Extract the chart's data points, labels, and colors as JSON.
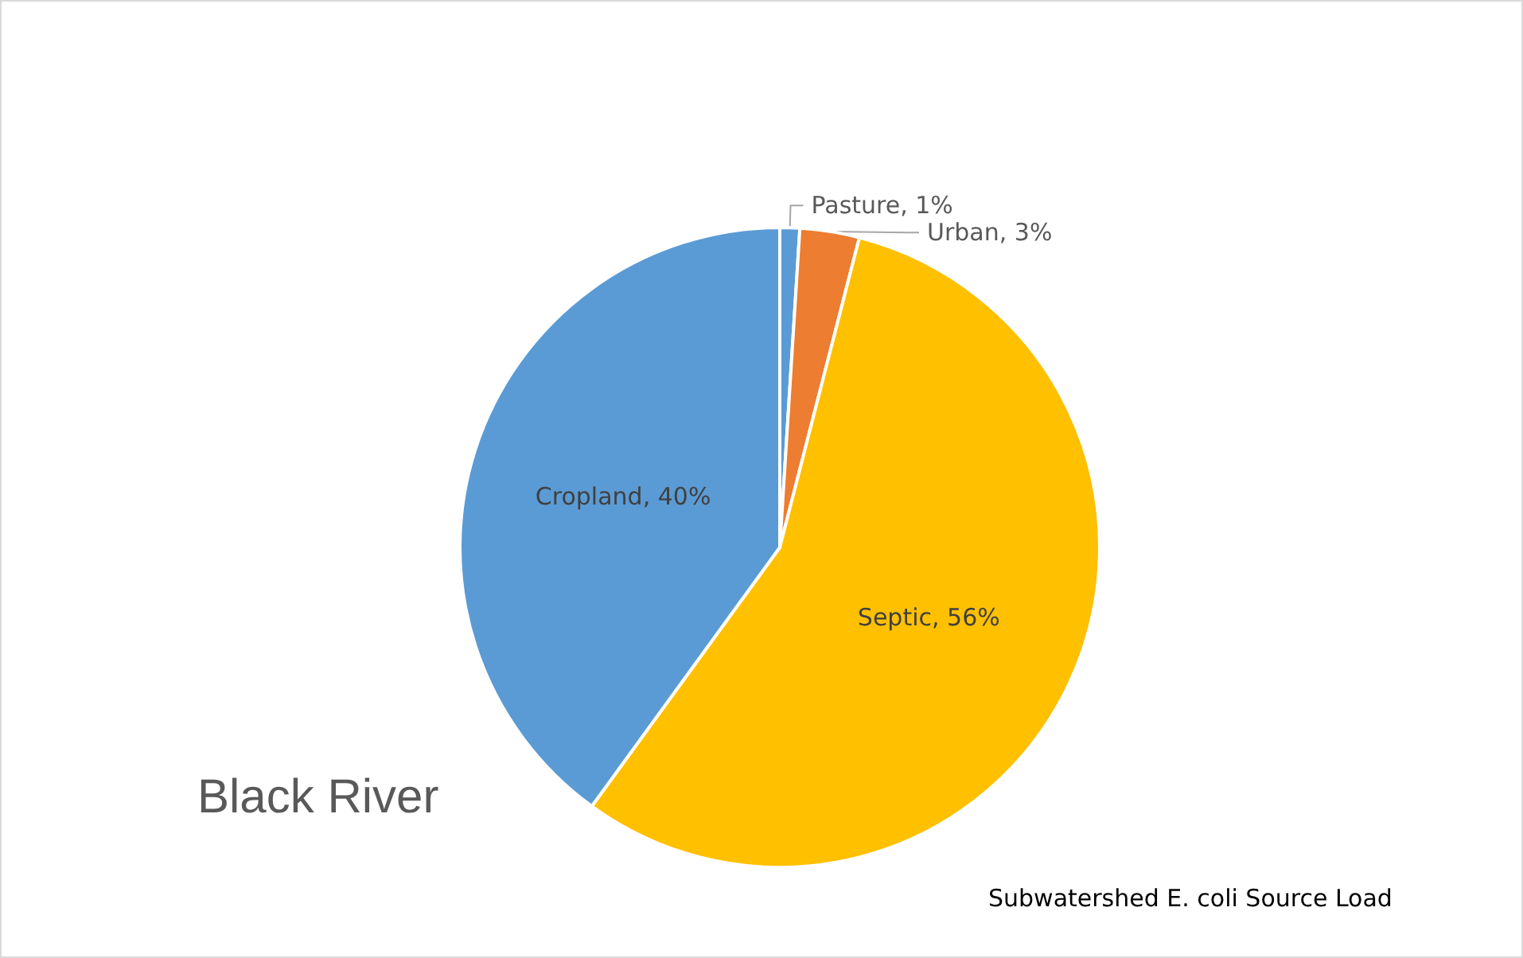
{
  "chart_data": {
    "type": "pie",
    "title": "Black River",
    "categories": [
      "Pasture",
      "Urban",
      "Septic",
      "Cropland"
    ],
    "values": [
      1,
      3,
      56,
      40
    ],
    "value_labels": [
      "1%",
      "3%",
      "56%",
      "40%"
    ],
    "colors": [
      "#5b9bd5",
      "#ed7d31",
      "#ffc000",
      "#5b9bd5"
    ],
    "annotations": [
      "Subwatershed E. coli Source Load"
    ]
  }
}
